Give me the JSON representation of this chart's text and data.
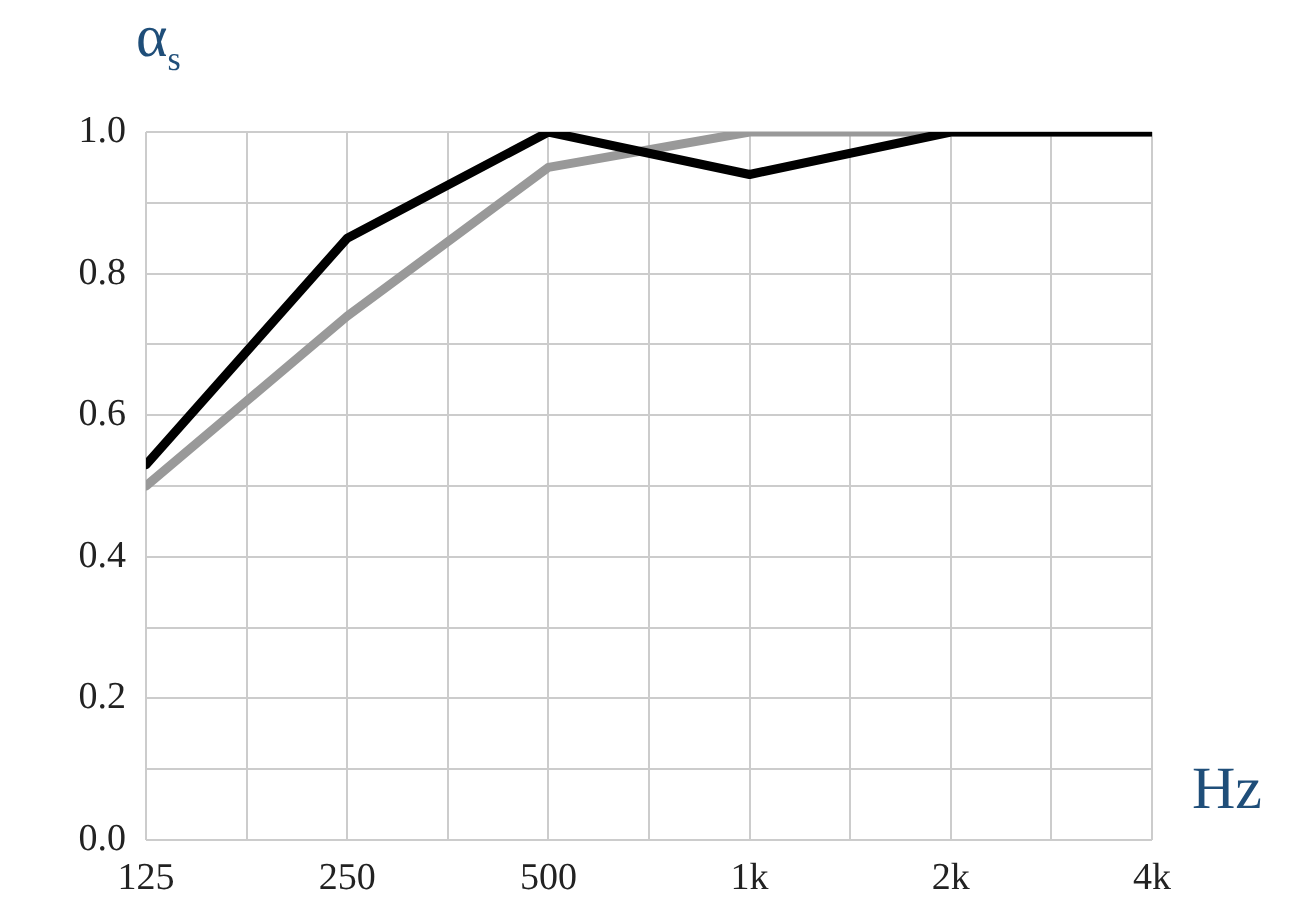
{
  "chart_data": {
    "type": "line",
    "xlabel": "Hz",
    "ylabel": "α$_{s}$",
    "log": "x",
    "x": [
      125,
      250,
      500,
      1000,
      2000,
      4000
    ],
    "xlim": [
      125,
      4000
    ],
    "xticks": [
      125,
      {
        "value": 176.8,
        "label": null
      },
      250,
      {
        "value": 353.6,
        "label": null
      },
      500,
      {
        "value": 707.1,
        "label": null
      },
      {
        "value": 1000,
        "label": "1k"
      },
      {
        "value": 1414,
        "label": null
      },
      {
        "value": 2000,
        "label": "2k"
      },
      {
        "value": 2828,
        "label": null
      },
      {
        "value": 4000,
        "label": "4k"
      }
    ],
    "ylim": [
      0,
      1
    ],
    "yticks": [
      {
        "value": 0,
        "label": "0.0"
      },
      {
        "value": 0.1,
        "label": null
      },
      0.2,
      {
        "value": 0.3,
        "label": null
      },
      0.4,
      {
        "value": 0.5,
        "label": null
      },
      0.6,
      {
        "value": 0.7,
        "label": null
      },
      0.8,
      {
        "value": 0.9,
        "label": null
      },
      {
        "value": 1,
        "label": "1.0"
      }
    ],
    "grid": true,
    "legend": false,
    "marker": "none",
    "line_style": "solid",
    "series": [
      {
        "color": "#000000",
        "values": [
          0.53,
          0.85,
          1,
          0.94,
          1,
          1
        ]
      },
      {
        "color": "#999999",
        "values": [
          0.5,
          0.74,
          0.95,
          1,
          1,
          1
        ]
      }
    ]
  }
}
